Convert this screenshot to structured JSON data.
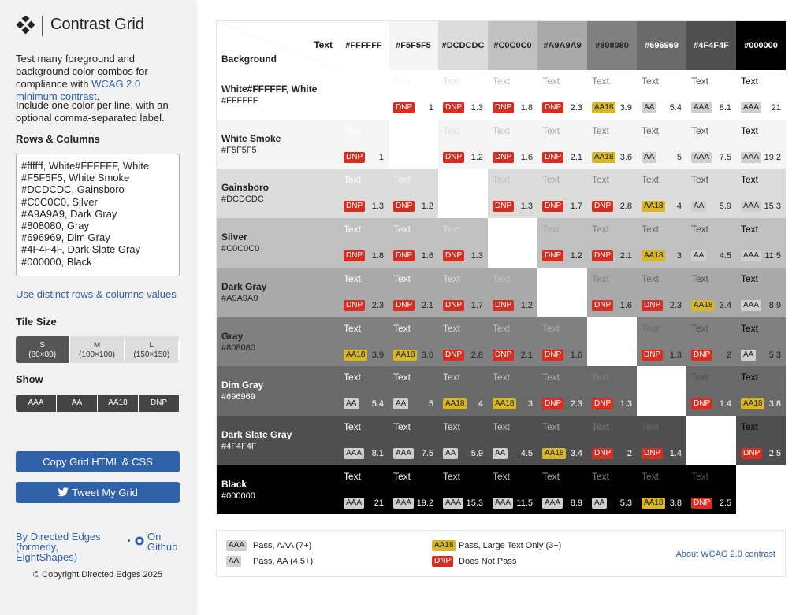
{
  "sidebar": {
    "title": "Contrast Grid",
    "intro": "Test many foreground and background color combos for compliance with",
    "intro_link": "WCAG 2.0 minimum contrast",
    "intro_end": ".",
    "note": "Include one color per line, with an optional comma-separated label.",
    "rows_label": "Rows & Columns",
    "textarea_lines": [
      "#ffffff, White#FFFFFF, White",
      "#F5F5F5, White Smoke",
      "#DCDCDC, Gainsboro",
      "#C0C0C0, Silver",
      "#A9A9A9, Dark Gray",
      "#808080, Gray",
      "#696969, Dim Gray",
      "#4F4F4F, Dark Slate Gray",
      "#000000, Black"
    ],
    "distinct_link": "Use distinct rows & columns values",
    "tile_label": "Tile Size",
    "tile_options": [
      {
        "size": "S",
        "dims": "(80×80)"
      },
      {
        "size": "M",
        "dims": "(100×100)"
      },
      {
        "size": "L",
        "dims": "(150×150)"
      }
    ],
    "show_label": "Show",
    "show_options": [
      "AAA",
      "AA",
      "AA18",
      "DNP"
    ],
    "copy_button": "Copy Grid HTML & CSS",
    "tweet_button": "Tweet My Grid",
    "by_link": "By Directed Edges (formerly, EightShapes)",
    "github_link": "On Github",
    "copyright": "© Copyright Directed Edges 2025"
  },
  "grid": {
    "corner_fg": "Text",
    "corner_bg": "Background",
    "cell_text": "Text",
    "columns": [
      "#FFFFFF",
      "#F5F5F5",
      "#DCDCDC",
      "#C0C0C0",
      "#A9A9A9",
      "#808080",
      "#696969",
      "#4F4F4F",
      "#000000"
    ],
    "rows": [
      {
        "label": "White#FFFFFF, White",
        "hex": "#FFFFFF",
        "cells": [
          null,
          {
            "badge": "DNP",
            "ratio": 1
          },
          {
            "badge": "DNP",
            "ratio": 1.3
          },
          {
            "badge": "DNP",
            "ratio": 1.8
          },
          {
            "badge": "DNP",
            "ratio": 2.3
          },
          {
            "badge": "AA18",
            "ratio": 3.9
          },
          {
            "badge": "AA",
            "ratio": 5.4
          },
          {
            "badge": "AAA",
            "ratio": 8.1
          },
          {
            "badge": "AAA",
            "ratio": 21
          }
        ]
      },
      {
        "label": "White Smoke",
        "hex": "#F5F5F5",
        "cells": [
          {
            "badge": "DNP",
            "ratio": 1
          },
          null,
          {
            "badge": "DNP",
            "ratio": 1.2
          },
          {
            "badge": "DNP",
            "ratio": 1.6
          },
          {
            "badge": "DNP",
            "ratio": 2.1
          },
          {
            "badge": "AA18",
            "ratio": 3.6
          },
          {
            "badge": "AA",
            "ratio": 5
          },
          {
            "badge": "AAA",
            "ratio": 7.5
          },
          {
            "badge": "AAA",
            "ratio": 19.2
          }
        ]
      },
      {
        "label": "Gainsboro",
        "hex": "#DCDCDC",
        "cells": [
          {
            "badge": "DNP",
            "ratio": 1.3
          },
          {
            "badge": "DNP",
            "ratio": 1.2
          },
          null,
          {
            "badge": "DNP",
            "ratio": 1.3
          },
          {
            "badge": "DNP",
            "ratio": 1.7
          },
          {
            "badge": "DNP",
            "ratio": 2.8
          },
          {
            "badge": "AA18",
            "ratio": 4
          },
          {
            "badge": "AA",
            "ratio": 5.9
          },
          {
            "badge": "AAA",
            "ratio": 15.3
          }
        ]
      },
      {
        "label": "Silver",
        "hex": "#C0C0C0",
        "cells": [
          {
            "badge": "DNP",
            "ratio": 1.8
          },
          {
            "badge": "DNP",
            "ratio": 1.6
          },
          {
            "badge": "DNP",
            "ratio": 1.3
          },
          null,
          {
            "badge": "DNP",
            "ratio": 1.2
          },
          {
            "badge": "DNP",
            "ratio": 2.1
          },
          {
            "badge": "AA18",
            "ratio": 3
          },
          {
            "badge": "AA",
            "ratio": 4.5
          },
          {
            "badge": "AAA",
            "ratio": 11.5
          }
        ]
      },
      {
        "label": "Dark Gray",
        "hex": "#A9A9A9",
        "cells": [
          {
            "badge": "DNP",
            "ratio": 2.3
          },
          {
            "badge": "DNP",
            "ratio": 2.1
          },
          {
            "badge": "DNP",
            "ratio": 1.7
          },
          {
            "badge": "DNP",
            "ratio": 1.2
          },
          null,
          {
            "badge": "DNP",
            "ratio": 1.6
          },
          {
            "badge": "DNP",
            "ratio": 2.3
          },
          {
            "badge": "AA18",
            "ratio": 3.4
          },
          {
            "badge": "AAA",
            "ratio": 8.9
          }
        ]
      },
      {
        "label": "Gray",
        "hex": "#808080",
        "cells": [
          {
            "badge": "AA18",
            "ratio": 3.9
          },
          {
            "badge": "AA18",
            "ratio": 3.6
          },
          {
            "badge": "DNP",
            "ratio": 2.8
          },
          {
            "badge": "DNP",
            "ratio": 2.1
          },
          {
            "badge": "DNP",
            "ratio": 1.6
          },
          null,
          {
            "badge": "DNP",
            "ratio": 1.3
          },
          {
            "badge": "DNP",
            "ratio": 2
          },
          {
            "badge": "AA",
            "ratio": 5.3
          }
        ]
      },
      {
        "label": "Dim Gray",
        "hex": "#696969",
        "cells": [
          {
            "badge": "AA",
            "ratio": 5.4
          },
          {
            "badge": "AA",
            "ratio": 5
          },
          {
            "badge": "AA18",
            "ratio": 4
          },
          {
            "badge": "AA18",
            "ratio": 3
          },
          {
            "badge": "DNP",
            "ratio": 2.3
          },
          {
            "badge": "DNP",
            "ratio": 1.3
          },
          null,
          {
            "badge": "DNP",
            "ratio": 1.4
          },
          {
            "badge": "AA18",
            "ratio": 3.8
          }
        ]
      },
      {
        "label": "Dark Slate Gray",
        "hex": "#4F4F4F",
        "cells": [
          {
            "badge": "AAA",
            "ratio": 8.1
          },
          {
            "badge": "AAA",
            "ratio": 7.5
          },
          {
            "badge": "AA",
            "ratio": 5.9
          },
          {
            "badge": "AA",
            "ratio": 4.5
          },
          {
            "badge": "AA18",
            "ratio": 3.4
          },
          {
            "badge": "DNP",
            "ratio": 2
          },
          {
            "badge": "DNP",
            "ratio": 1.4
          },
          null,
          {
            "badge": "DNP",
            "ratio": 2.5
          }
        ]
      },
      {
        "label": "Black",
        "hex": "#000000",
        "cells": [
          {
            "badge": "AAA",
            "ratio": 21
          },
          {
            "badge": "AAA",
            "ratio": 19.2
          },
          {
            "badge": "AAA",
            "ratio": 15.3
          },
          {
            "badge": "AAA",
            "ratio": 11.5
          },
          {
            "badge": "AAA",
            "ratio": 8.9
          },
          {
            "badge": "AA",
            "ratio": 5.3
          },
          {
            "badge": "AA18",
            "ratio": 3.8
          },
          {
            "badge": "DNP",
            "ratio": 2.5
          },
          null
        ]
      }
    ]
  },
  "legend": {
    "items": [
      {
        "badge": "AAA",
        "text": "Pass, AAA (7+)"
      },
      {
        "badge": "AA",
        "text": "Pass, AA (4.5+)"
      },
      {
        "badge": "AA18",
        "text": "Pass, Large Text Only (3+)"
      },
      {
        "badge": "DNP",
        "text": "Does Not Pass"
      }
    ],
    "about_link": "About WCAG 2.0 contrast"
  }
}
